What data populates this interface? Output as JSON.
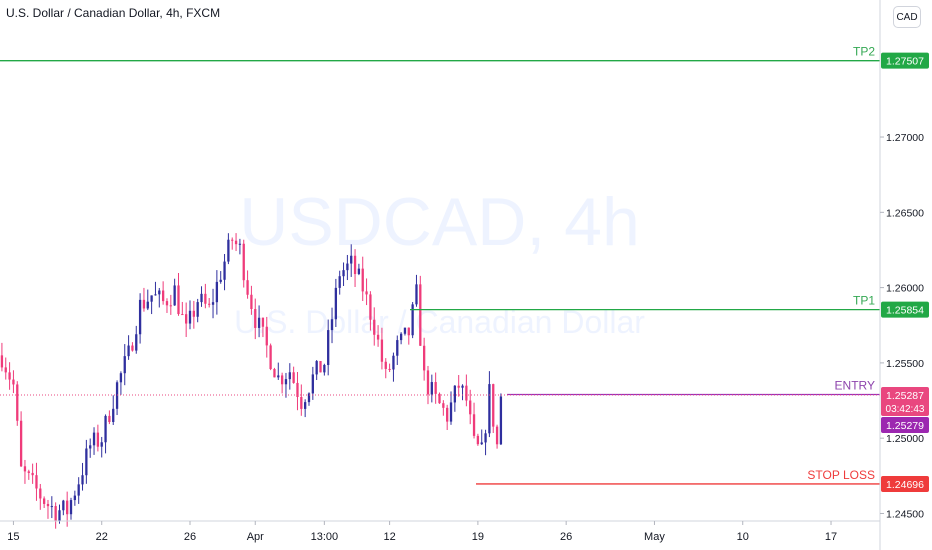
{
  "header": {
    "symbol_title": "U.S. Dollar / Canadian Dollar, 4h, FXCM",
    "currency_button": "CAD"
  },
  "watermark": {
    "main": "USDCAD, 4h",
    "sub": "U.S. Dollar / Canadian Dollar"
  },
  "colors": {
    "up": "#2f2f9e",
    "down": "#ef3b7a",
    "tp": "#22a846",
    "tp_label": "#34a853",
    "entry": "#9b30b6",
    "entry_label": "#8e44ad",
    "stop": "#ef3b3b",
    "current": "#e9477f",
    "prev_close": "#9c27b0",
    "axis_text": "#131722",
    "watermark": "rgba(41,98,255,0.08)"
  },
  "levels": [
    {
      "name": "TP2",
      "price": 1.27507,
      "label": "1.27507",
      "kind": "tp"
    },
    {
      "name": "TP1",
      "price": 1.25854,
      "label": "1.25854",
      "kind": "tp"
    },
    {
      "name": "ENTRY",
      "price": 1.2529,
      "label": "",
      "kind": "entry"
    },
    {
      "name": "STOP LOSS",
      "price": 1.24696,
      "label": "1.24696",
      "kind": "stop"
    }
  ],
  "current_price": {
    "price": 1.25287,
    "label": "1.25287",
    "countdown": "03:42:43"
  },
  "prev_close_price": {
    "price": 1.25279,
    "label": "1.25279"
  },
  "chart_data": {
    "type": "candlestick",
    "title": "U.S. Dollar / Canadian Dollar, 4h, FXCM",
    "ylim": [
      1.2445,
      1.2791
    ],
    "y_ticks": [
      1.245,
      1.25,
      1.255,
      1.26,
      1.265,
      1.27
    ],
    "y_tick_labels": [
      "1.24500",
      "1.25000",
      "1.25500",
      "1.26000",
      "1.26500",
      "1.27000"
    ],
    "x_ticks": [
      {
        "label": "15",
        "index": 3
      },
      {
        "label": "22",
        "index": 26
      },
      {
        "label": "26",
        "index": 49
      },
      {
        "label": "Apr",
        "index": 66
      },
      {
        "label": "13:00",
        "index": 84
      },
      {
        "label": "12",
        "index": 101
      },
      {
        "label": "19",
        "index": 124
      },
      {
        "label": "26",
        "index": 147
      },
      {
        "label": "May",
        "index": 170
      },
      {
        "label": "10",
        "index": 193
      },
      {
        "label": "17",
        "index": 216
      }
    ],
    "slot_count": 229,
    "grid": false,
    "anchors": [
      [
        0,
        1.2555
      ],
      [
        3,
        1.2535
      ],
      [
        5,
        1.2478
      ],
      [
        7,
        1.2472
      ],
      [
        10,
        1.2462
      ],
      [
        12,
        1.2456
      ],
      [
        14,
        1.2452
      ],
      [
        17,
        1.2452
      ],
      [
        20,
        1.2472
      ],
      [
        23,
        1.2495
      ],
      [
        26,
        1.25
      ],
      [
        30,
        1.2535
      ],
      [
        33,
        1.2555
      ],
      [
        36,
        1.2588
      ],
      [
        39,
        1.2595
      ],
      [
        42,
        1.259
      ],
      [
        45,
        1.2598
      ],
      [
        48,
        1.257
      ],
      [
        51,
        1.2592
      ],
      [
        54,
        1.2585
      ],
      [
        57,
        1.261
      ],
      [
        60,
        1.2632
      ],
      [
        62,
        1.2625
      ],
      [
        64,
        1.26
      ],
      [
        66,
        1.258
      ],
      [
        69,
        1.256
      ],
      [
        72,
        1.254
      ],
      [
        75,
        1.2545
      ],
      [
        78,
        1.2525
      ],
      [
        81,
        1.254
      ],
      [
        84,
        1.255
      ],
      [
        86,
        1.258
      ],
      [
        88,
        1.261
      ],
      [
        91,
        1.2615
      ],
      [
        94,
        1.26
      ],
      [
        97,
        1.2575
      ],
      [
        100,
        1.254
      ],
      [
        103,
        1.256
      ],
      [
        106,
        1.257
      ],
      [
        108,
        1.2595
      ],
      [
        110,
        1.254
      ],
      [
        113,
        1.2525
      ],
      [
        116,
        1.2515
      ],
      [
        119,
        1.2535
      ],
      [
        121,
        1.2525
      ],
      [
        123,
        1.2495
      ],
      [
        125,
        1.249
      ],
      [
        127,
        1.253
      ],
      [
        129,
        1.2495
      ],
      [
        130,
        1.2528
      ]
    ]
  }
}
